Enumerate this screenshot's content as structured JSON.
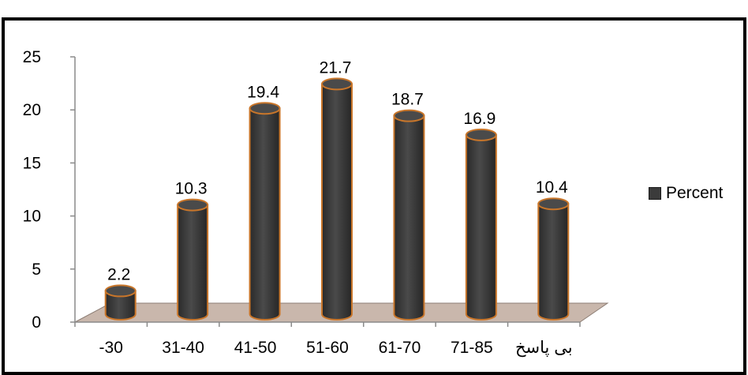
{
  "chart_data": {
    "type": "bar",
    "categories": [
      "-30",
      "31-40",
      "41-50",
      "51-60",
      "61-70",
      "71-85",
      "بی پاسخ"
    ],
    "series": [
      {
        "name": "Percent",
        "values": [
          2.2,
          10.3,
          19.4,
          21.7,
          18.7,
          16.9,
          10.4
        ]
      }
    ],
    "data_labels": [
      "2.2",
      "10.3",
      "19.4",
      "21.7",
      "18.7",
      "16.9",
      "10.4"
    ],
    "y_ticks": [
      "0",
      "5",
      "10",
      "15",
      "20",
      "25"
    ],
    "ylim": [
      0,
      25
    ],
    "legend_position": "right",
    "bar_shape": "cylinder",
    "colors": {
      "bar_fill": "#3a3a3a",
      "bar_outline": "#c9762a",
      "floor": "#c9b7ac",
      "frame": "#000000"
    }
  }
}
